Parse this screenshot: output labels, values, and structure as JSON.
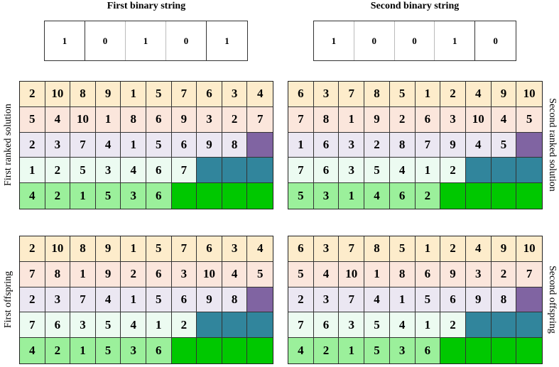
{
  "titles": {
    "first": "First binary string",
    "second": "Second binary string"
  },
  "binary_strings": {
    "first": [
      "1",
      "0",
      "1",
      "0",
      "1"
    ],
    "second": [
      "1",
      "0",
      "0",
      "1",
      "0"
    ]
  },
  "side_labels": {
    "first_ranked": "First ranked solution",
    "second_ranked": "Second ranked solution",
    "first_offspring": "First offspring",
    "second_offspring": "Second offspring"
  },
  "colors": {
    "row_backgrounds": [
      "#fdeccb",
      "#fbe6dc",
      "#ebe7f2",
      "#ecfbf1",
      "#9bf09b"
    ],
    "row_fillers": [
      "",
      "",
      "#8064a2",
      "#31859c",
      "#00c800"
    ]
  },
  "grids": {
    "first_ranked": [
      [
        "2",
        "10",
        "8",
        "9",
        "1",
        "5",
        "7",
        "6",
        "3",
        "4"
      ],
      [
        "5",
        "4",
        "10",
        "1",
        "8",
        "6",
        "9",
        "3",
        "2",
        "7"
      ],
      [
        "2",
        "3",
        "7",
        "4",
        "1",
        "5",
        "6",
        "9",
        "8"
      ],
      [
        "1",
        "2",
        "5",
        "3",
        "4",
        "6",
        "7"
      ],
      [
        "4",
        "2",
        "1",
        "5",
        "3",
        "6"
      ]
    ],
    "second_ranked": [
      [
        "6",
        "3",
        "7",
        "8",
        "5",
        "1",
        "2",
        "4",
        "9",
        "10"
      ],
      [
        "7",
        "8",
        "1",
        "9",
        "2",
        "6",
        "3",
        "10",
        "4",
        "5"
      ],
      [
        "1",
        "6",
        "3",
        "2",
        "8",
        "7",
        "9",
        "4",
        "5"
      ],
      [
        "7",
        "6",
        "3",
        "5",
        "4",
        "1",
        "2"
      ],
      [
        "5",
        "3",
        "1",
        "4",
        "6",
        "2"
      ]
    ],
    "first_offspring": [
      [
        "2",
        "10",
        "8",
        "9",
        "1",
        "5",
        "7",
        "6",
        "3",
        "4"
      ],
      [
        "7",
        "8",
        "1",
        "9",
        "2",
        "6",
        "3",
        "10",
        "4",
        "5"
      ],
      [
        "2",
        "3",
        "7",
        "4",
        "1",
        "5",
        "6",
        "9",
        "8"
      ],
      [
        "7",
        "6",
        "3",
        "5",
        "4",
        "1",
        "2"
      ],
      [
        "4",
        "2",
        "1",
        "5",
        "3",
        "6"
      ]
    ],
    "second_offspring": [
      [
        "6",
        "3",
        "7",
        "8",
        "5",
        "1",
        "2",
        "4",
        "9",
        "10"
      ],
      [
        "5",
        "4",
        "10",
        "1",
        "8",
        "6",
        "9",
        "3",
        "2",
        "7"
      ],
      [
        "2",
        "3",
        "7",
        "4",
        "1",
        "5",
        "6",
        "9",
        "8"
      ],
      [
        "7",
        "6",
        "3",
        "5",
        "4",
        "1",
        "2"
      ],
      [
        "4",
        "2",
        "1",
        "5",
        "3",
        "6"
      ]
    ]
  }
}
